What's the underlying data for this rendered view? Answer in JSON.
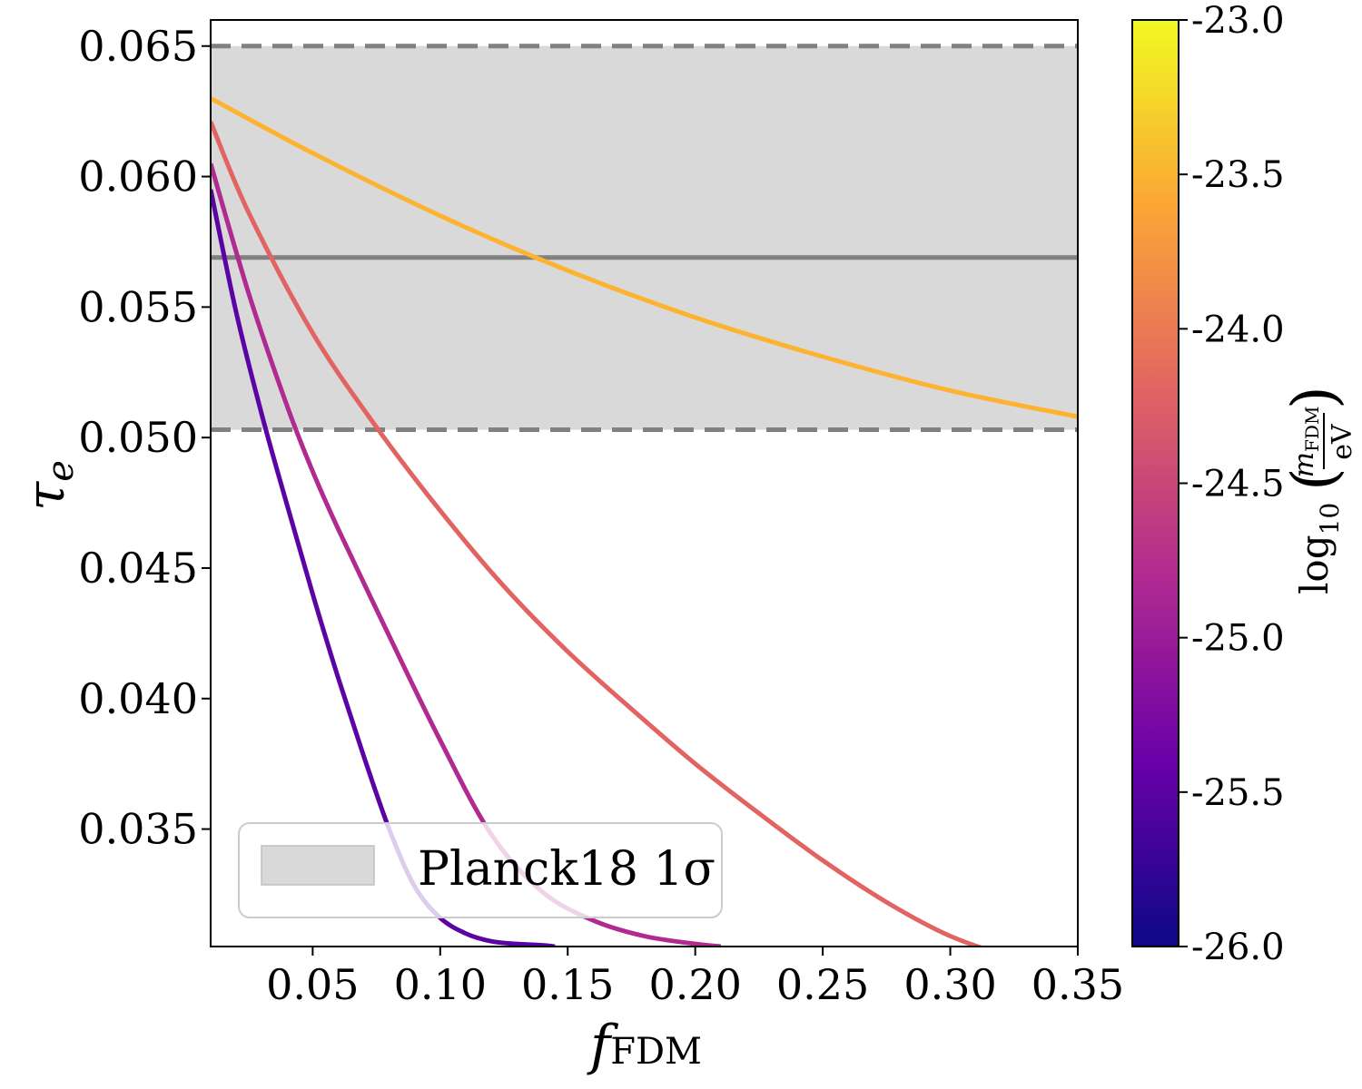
{
  "chart_data": {
    "type": "line",
    "xlabel": {
      "main": "f",
      "sub": "FDM"
    },
    "ylabel": {
      "main": "τ",
      "sub": "e"
    },
    "xlim": [
      0.01,
      0.35
    ],
    "ylim": [
      0.0305,
      0.066
    ],
    "xticks": [
      0.05,
      0.1,
      0.15,
      0.2,
      0.25,
      0.3,
      0.35
    ],
    "xtick_labels": [
      "0.05",
      "0.10",
      "0.15",
      "0.20",
      "0.25",
      "0.30",
      "0.35"
    ],
    "yticks": [
      0.035,
      0.04,
      0.045,
      0.05,
      0.055,
      0.06,
      0.065
    ],
    "ytick_labels": [
      "0.035",
      "0.040",
      "0.045",
      "0.050",
      "0.055",
      "0.060",
      "0.065"
    ],
    "band": {
      "label": "Planck18 1σ",
      "center": 0.0569,
      "low": 0.0503,
      "high": 0.065,
      "fill_color": "#d9d9d9",
      "line_color": "#808080"
    },
    "legend": {
      "location": "lower-left",
      "entries": [
        "Planck18 1σ"
      ]
    },
    "colorbar": {
      "label": {
        "prefix": "log",
        "sub": "10",
        "num_main": "m",
        "num_sub": "FDM",
        "den": "eV"
      },
      "range": [
        -26.0,
        -23.0
      ],
      "ticks": [
        -26.0,
        -25.5,
        -25.0,
        -24.5,
        -24.0,
        -23.5,
        -23.0
      ],
      "tick_labels": [
        "-26.0",
        "-25.5",
        "-25.0",
        "-24.5",
        "-24.0",
        "-23.5",
        "-23.0"
      ],
      "colormap": "plasma",
      "stops": [
        "#0d0887",
        "#6a00a8",
        "#b12a90",
        "#e16462",
        "#fca636",
        "#f0f921"
      ]
    },
    "series": [
      {
        "log10_mass": -26.0,
        "color": "#5b03a4",
        "x": [
          0.01,
          0.02,
          0.03,
          0.04,
          0.05,
          0.06,
          0.07,
          0.08,
          0.09,
          0.1,
          0.11,
          0.12,
          0.13,
          0.14,
          0.145
        ],
        "y": [
          0.0595,
          0.0548,
          0.0509,
          0.0474,
          0.044,
          0.0408,
          0.0378,
          0.035,
          0.0328,
          0.0316,
          0.031,
          0.0307,
          0.0306,
          0.03055,
          0.0305
        ]
      },
      {
        "log10_mass": -25.0,
        "color": "#b02a90",
        "x": [
          0.01,
          0.025,
          0.04,
          0.05,
          0.06,
          0.08,
          0.1,
          0.12,
          0.14,
          0.16,
          0.18,
          0.2,
          0.21
        ],
        "y": [
          0.0605,
          0.0555,
          0.0512,
          0.0487,
          0.0465,
          0.0424,
          0.0384,
          0.0348,
          0.0326,
          0.0315,
          0.0309,
          0.0306,
          0.0305
        ]
      },
      {
        "log10_mass": -24.0,
        "color": "#e16462",
        "x": [
          0.01,
          0.025,
          0.05,
          0.075,
          0.1,
          0.125,
          0.15,
          0.175,
          0.2,
          0.225,
          0.25,
          0.275,
          0.3,
          0.325,
          0.35
        ],
        "y": [
          0.0621,
          0.0586,
          0.054,
          0.0504,
          0.0472,
          0.0443,
          0.0418,
          0.0396,
          0.0375,
          0.0356,
          0.0338,
          0.0322,
          0.0309,
          0.0301,
          0.0297
        ]
      },
      {
        "log10_mass": -23.0,
        "color": "#fdb32f",
        "x": [
          0.01,
          0.05,
          0.1,
          0.15,
          0.2,
          0.25,
          0.3,
          0.35
        ],
        "y": [
          0.063,
          0.0609,
          0.0585,
          0.0564,
          0.0546,
          0.0531,
          0.0518,
          0.0508
        ]
      }
    ]
  }
}
